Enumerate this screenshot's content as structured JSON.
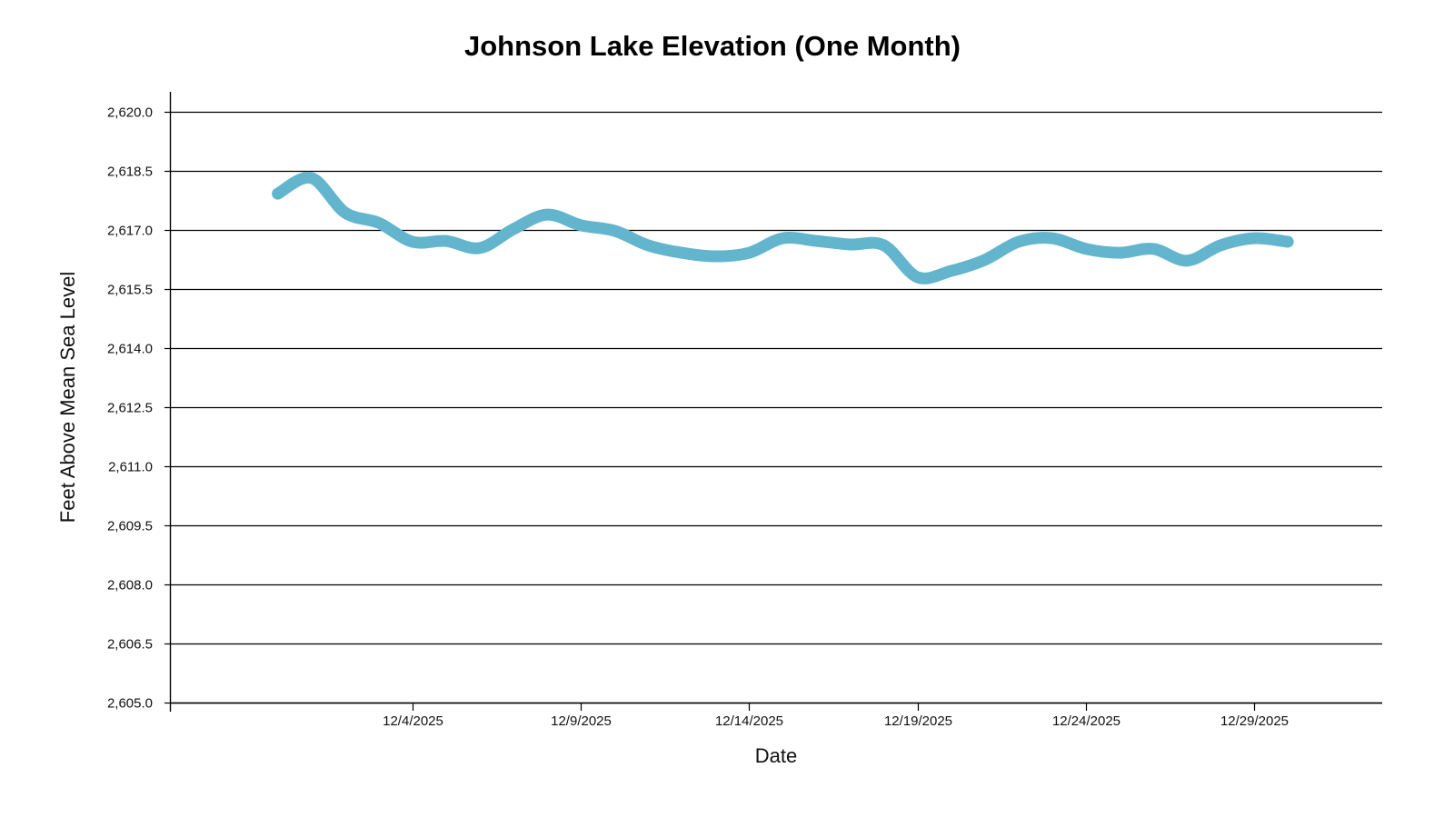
{
  "chart_data": {
    "type": "line",
    "title": "Johnson Lake Elevation (One Month)",
    "xlabel": "Date",
    "ylabel": "Feet Above Mean Sea Level",
    "ylim": [
      2605.0,
      2620.0
    ],
    "yticks": [
      2605.0,
      2606.5,
      2608.0,
      2609.5,
      2611.0,
      2612.5,
      2614.0,
      2615.5,
      2617.0,
      2618.5,
      2620.0
    ],
    "ytick_labels": [
      "2,605.0",
      "2,606.5",
      "2,608.0",
      "2,609.5",
      "2,611.0",
      "2,612.5",
      "2,614.0",
      "2,615.5",
      "2,617.0",
      "2,618.5",
      "2,620.0"
    ],
    "x_unit": "day of December 2025",
    "xlim": [
      -3.2,
      32.8
    ],
    "xticks": [
      4,
      9,
      14,
      19,
      24,
      29
    ],
    "xtick_labels": [
      "12/4/2025",
      "12/9/2025",
      "12/14/2025",
      "12/19/2025",
      "12/24/2025",
      "12/29/2025"
    ],
    "grid": "horizontal",
    "legend": "none",
    "line_color": "#63b5cd",
    "series": [
      {
        "name": "Elevation",
        "x": [
          0,
          1,
          2,
          3,
          4,
          5,
          6,
          7,
          8,
          9,
          10,
          11,
          12,
          13,
          14,
          15,
          16,
          17,
          18,
          19,
          20,
          21,
          22,
          23,
          24,
          25,
          26,
          27,
          28,
          29,
          30
        ],
        "values": [
          2617.92,
          2618.32,
          2617.44,
          2617.18,
          2616.7,
          2616.72,
          2616.54,
          2617.02,
          2617.39,
          2617.12,
          2616.98,
          2616.61,
          2616.42,
          2616.33,
          2616.42,
          2616.79,
          2616.72,
          2616.63,
          2616.61,
          2615.8,
          2615.96,
          2616.24,
          2616.7,
          2616.79,
          2616.52,
          2616.42,
          2616.52,
          2616.22,
          2616.61,
          2616.79,
          2616.7
        ]
      }
    ]
  }
}
